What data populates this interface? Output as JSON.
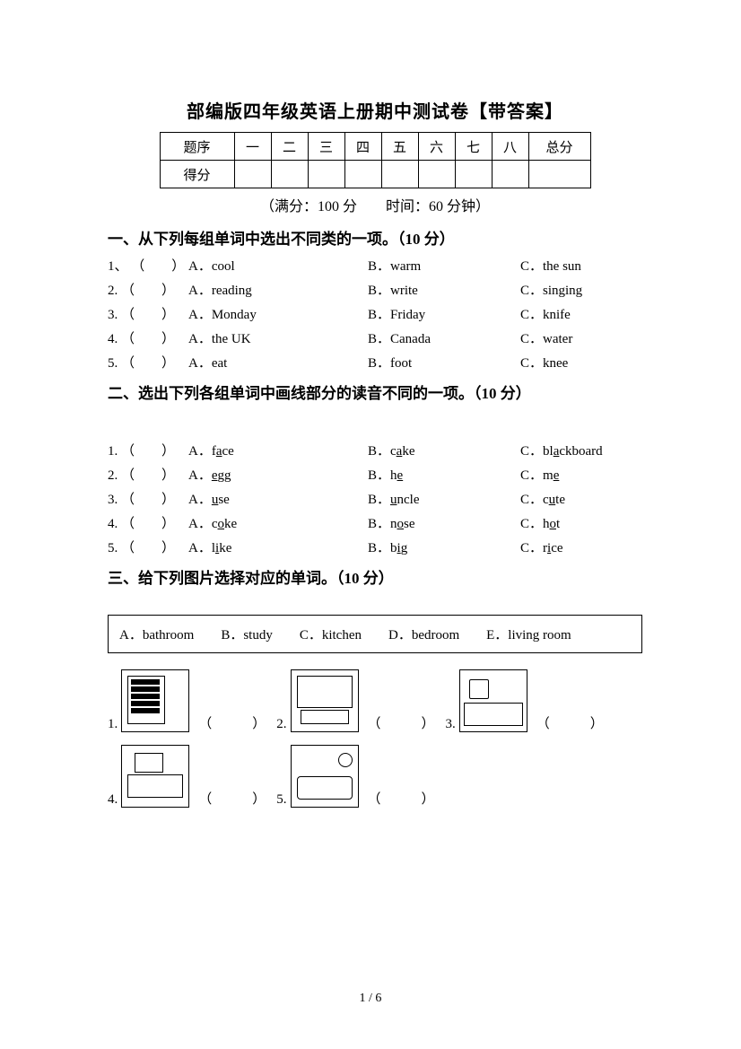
{
  "title": "部编版四年级英语上册期中测试卷【带答案】",
  "score_table": {
    "row1": [
      "题序",
      "一",
      "二",
      "三",
      "四",
      "五",
      "六",
      "七",
      "八",
      "总分"
    ],
    "row2_label": "得分"
  },
  "meta": "（满分：100 分　　时间：60 分钟）",
  "section1": {
    "heading": "一、从下列每组单词中选出不同类的一项。（10 分）",
    "rows": [
      {
        "n": "1",
        "sep": "、",
        "A": "cool",
        "B": "warm",
        "C": "the sun"
      },
      {
        "n": "2",
        "sep": ".",
        "A": "reading",
        "B": "write",
        "C": "singing"
      },
      {
        "n": "3",
        "sep": ".",
        "A": "Monday",
        "B": "Friday",
        "C": "knife"
      },
      {
        "n": "4",
        "sep": ".",
        "A": "the UK",
        "B": "Canada",
        "C": "water"
      },
      {
        "n": "5",
        "sep": ".",
        "A": "eat",
        "B": "foot",
        "C": "knee"
      }
    ]
  },
  "section2": {
    "heading": "二、选出下列各组单词中画线部分的读音不同的一项。（10 分）",
    "rows": [
      {
        "n": "1",
        "A": {
          "pre": "f",
          "u": "a",
          "post": "ce"
        },
        "B": {
          "pre": "c",
          "u": "a",
          "post": "ke"
        },
        "C": {
          "pre": "bl",
          "u": "a",
          "post": "ckboard"
        }
      },
      {
        "n": "2",
        "A": {
          "pre": "",
          "u": "e",
          "post": "gg"
        },
        "B": {
          "pre": "h",
          "u": "e",
          "post": ""
        },
        "C": {
          "pre": "m",
          "u": "e",
          "post": ""
        }
      },
      {
        "n": "3",
        "A": {
          "pre": "",
          "u": "u",
          "post": "se"
        },
        "B": {
          "pre": "",
          "u": "u",
          "post": "ncle"
        },
        "C": {
          "pre": "c",
          "u": "u",
          "post": "te"
        }
      },
      {
        "n": "4",
        "A": {
          "pre": "c",
          "u": "o",
          "post": "ke"
        },
        "B": {
          "pre": "n",
          "u": "o",
          "post": "se"
        },
        "C": {
          "pre": "h",
          "u": "o",
          "post": "t"
        }
      },
      {
        "n": "5",
        "A": {
          "pre": "l",
          "u": "i",
          "post": "ke"
        },
        "B": {
          "pre": "b",
          "u": "i",
          "post": "g"
        },
        "C": {
          "pre": "r",
          "u": "i",
          "post": "ce"
        }
      }
    ]
  },
  "section3": {
    "heading": "三、给下列图片选择对应的单词。（10 分）",
    "bank_parts": [
      "A．bathroom",
      "B．study",
      "C．kitchen",
      "D．bedroom",
      "E．living room"
    ],
    "items": [
      {
        "n": "1",
        "cls": "room-study"
      },
      {
        "n": "2",
        "cls": "room-living"
      },
      {
        "n": "3",
        "cls": "room-kitchen"
      },
      {
        "n": "4",
        "cls": "room-bedroom"
      },
      {
        "n": "5",
        "cls": "room-bath"
      }
    ]
  },
  "blank_paren": "（　　　）",
  "footer": "1 / 6"
}
